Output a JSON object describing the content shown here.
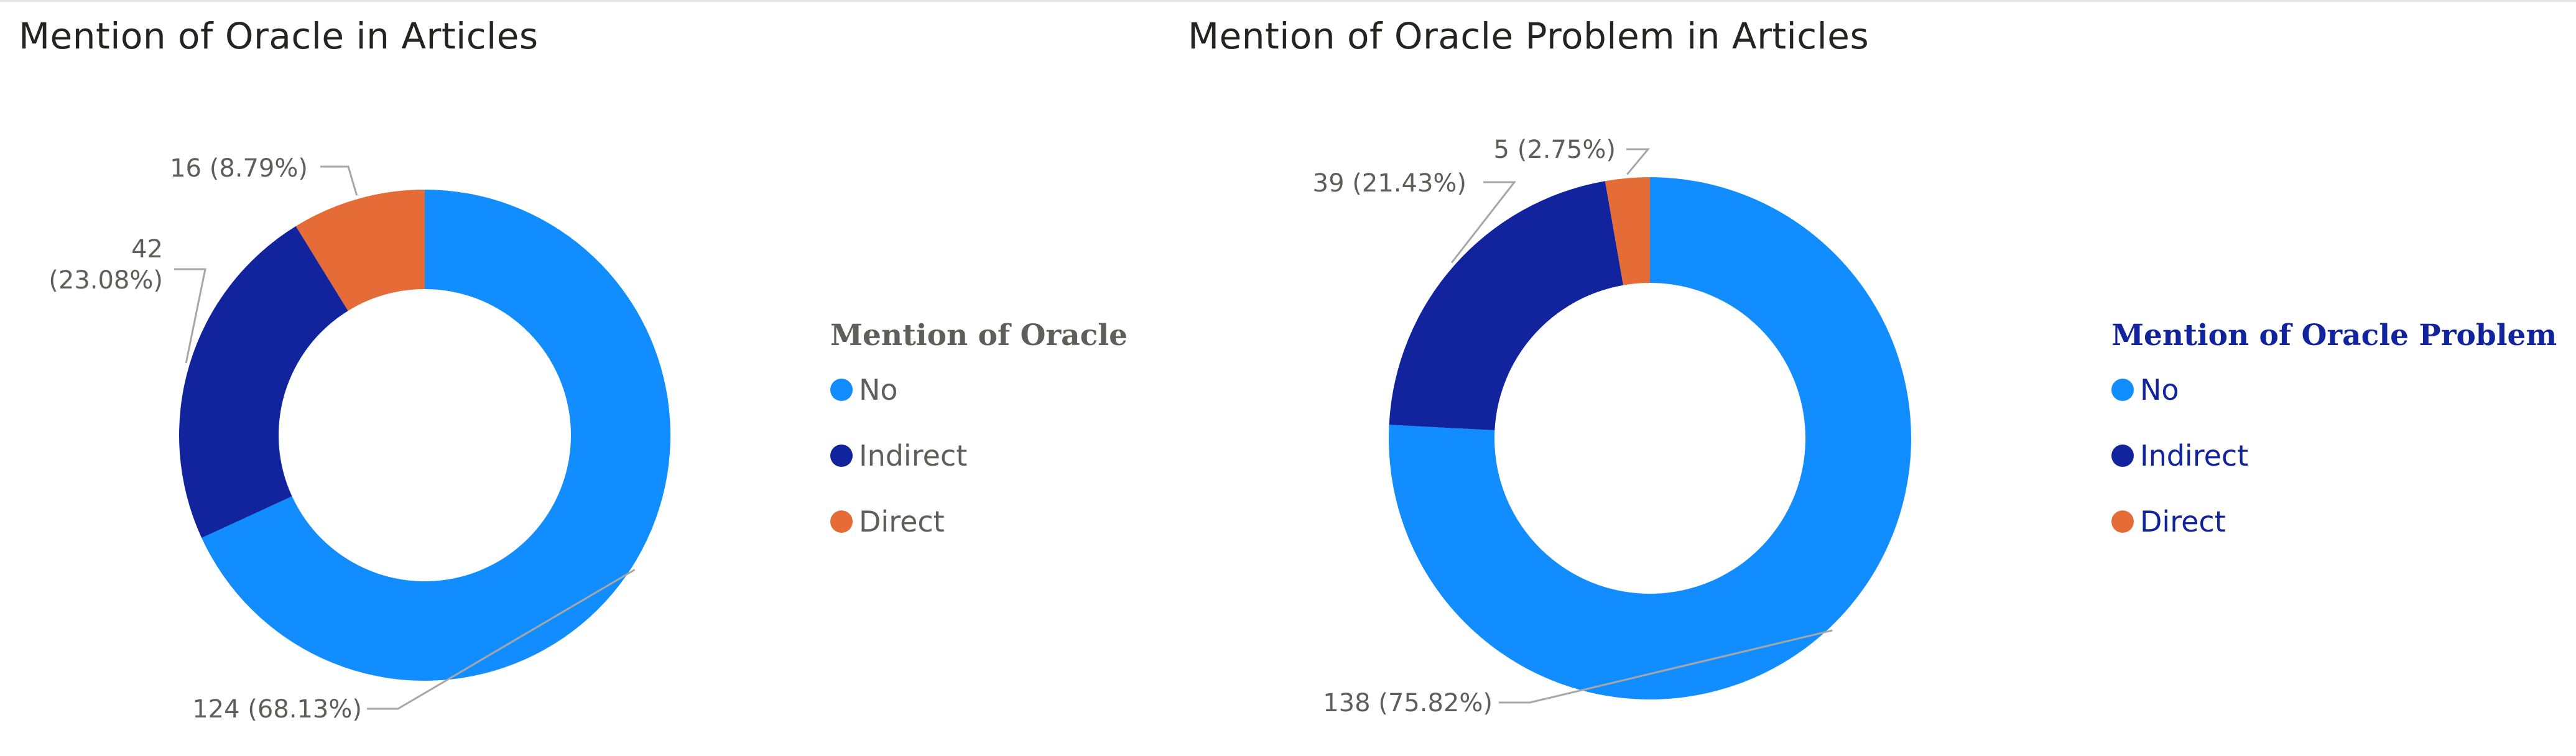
{
  "colors": {
    "no": "#118dff",
    "indirect": "#12239e",
    "direct": "#e66c37"
  },
  "chart_data": [
    {
      "type": "pie",
      "variant": "donut",
      "title": "Mention of Oracle in Articles",
      "legend_title": "Mention of Oracle",
      "legend_title_color": "#605e5c",
      "legend_text_color": "#605e5c",
      "legend_placement": "right",
      "categories": [
        "No",
        "Indirect",
        "Direct"
      ],
      "values": [
        124,
        42,
        16
      ],
      "labels": [
        [
          "124 (68.13%)"
        ],
        [
          "42",
          "(23.08%)"
        ],
        [
          "16 (8.79%)"
        ]
      ]
    },
    {
      "type": "pie",
      "variant": "donut",
      "title": "Mention of Oracle Problem in Articles",
      "legend_title": "Mention of Oracle Problem",
      "legend_title_color": "#12239e",
      "legend_text_color": "#12239e",
      "legend_placement": "right",
      "categories": [
        "No",
        "Indirect",
        "Direct"
      ],
      "values": [
        138,
        39,
        5
      ],
      "labels": [
        [
          "138 (75.82%)"
        ],
        [
          "39 (21.43%)"
        ],
        [
          "5 (2.75%)"
        ]
      ]
    }
  ]
}
